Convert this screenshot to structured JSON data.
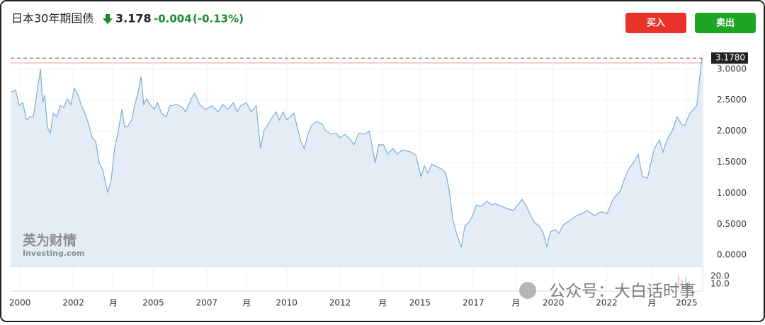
{
  "header": {
    "title": "日本30年期国债",
    "price": "3.178",
    "change": "-0.004",
    "change_pct": "(-0.13%)"
  },
  "buttons": {
    "buy": "买入",
    "sell": "卖出"
  },
  "watermarks": {
    "brand": "英为财情",
    "brand_sub": "Investing.com",
    "overlay": "公众号：大白话时事"
  },
  "volume_axis": [
    "20.0",
    "10.0"
  ],
  "chart_data": {
    "type": "area",
    "series": [
      {
        "color": "#7aaed6",
        "x": [
          1999.66,
          1999.84,
          1999.97,
          2000.11,
          2000.24,
          2000.37,
          2000.5,
          2000.64,
          2000.77,
          2000.85,
          2000.93,
          2001.03,
          2001.14,
          2001.25,
          2001.38,
          2001.51,
          2001.64,
          2001.78,
          2001.91,
          2002.04,
          2002.18,
          2002.31,
          2002.44,
          2002.57,
          2002.71,
          2002.84,
          2002.97,
          2003.1,
          2003.29,
          2003.42,
          2003.55,
          2003.69,
          2003.82,
          2003.93,
          2004.06,
          2004.19,
          2004.3,
          2004.43,
          2004.54,
          2004.64,
          2004.75,
          2004.88,
          2005.04,
          2005.15,
          2005.31,
          2005.49,
          2005.62,
          2005.89,
          2006.1,
          2006.21,
          2006.42,
          2006.55,
          2006.74,
          2006.95,
          2007.21,
          2007.43,
          2007.61,
          2007.8,
          2008.01,
          2008.14,
          2008.28,
          2008.49,
          2008.67,
          2008.86,
          2009.02,
          2009.15,
          2009.28,
          2009.47,
          2009.6,
          2009.73,
          2009.87,
          2010.0,
          2010.13,
          2010.27,
          2010.4,
          2010.53,
          2010.66,
          2010.8,
          2010.93,
          2011.11,
          2011.33,
          2011.46,
          2011.67,
          2011.86,
          2011.99,
          2012.18,
          2012.39,
          2012.52,
          2012.71,
          2012.92,
          2013.1,
          2013.32,
          2013.45,
          2013.63,
          2013.79,
          2013.98,
          2014.16,
          2014.32,
          2014.51,
          2014.69,
          2014.85,
          2015.04,
          2015.17,
          2015.3,
          2015.44,
          2015.62,
          2015.84,
          2015.97,
          2016.1,
          2016.23,
          2016.37,
          2016.55,
          2016.68,
          2016.82,
          2016.98,
          2017.11,
          2017.29,
          2017.51,
          2017.69,
          2017.82,
          2018.09,
          2018.3,
          2018.49,
          2018.67,
          2018.83,
          2018.99,
          2019.15,
          2019.31,
          2019.47,
          2019.63,
          2019.76,
          2019.89,
          2020.08,
          2020.21,
          2020.34,
          2020.48,
          2020.69,
          2020.88,
          2021.06,
          2021.27,
          2021.54,
          2021.8,
          2022.02,
          2022.2,
          2022.33,
          2022.52,
          2022.65,
          2022.81,
          2023.0,
          2023.18,
          2023.34,
          2023.53,
          2023.66,
          2023.79,
          2023.98,
          2024.11,
          2024.24,
          2024.46,
          2024.64,
          2024.8,
          2024.93,
          2025.12,
          2025.38,
          2025.46,
          2025.57
        ],
        "values": [
          2.63,
          2.66,
          2.41,
          2.46,
          2.18,
          2.23,
          2.23,
          2.63,
          3.0,
          2.46,
          2.58,
          2.06,
          1.97,
          2.29,
          2.23,
          2.41,
          2.38,
          2.52,
          2.43,
          2.69,
          2.58,
          2.41,
          2.29,
          2.12,
          1.89,
          1.84,
          1.49,
          1.38,
          1.01,
          1.21,
          1.72,
          2.01,
          2.35,
          2.06,
          2.09,
          2.18,
          2.41,
          2.63,
          2.88,
          2.43,
          2.52,
          2.43,
          2.35,
          2.46,
          2.29,
          2.23,
          2.41,
          2.43,
          2.38,
          2.31,
          2.52,
          2.61,
          2.43,
          2.35,
          2.41,
          2.31,
          2.43,
          2.35,
          2.46,
          2.31,
          2.41,
          2.46,
          2.31,
          2.41,
          1.72,
          2.01,
          2.09,
          2.23,
          2.31,
          2.18,
          2.31,
          2.18,
          2.23,
          2.29,
          2.06,
          1.84,
          1.72,
          1.95,
          2.09,
          2.15,
          2.12,
          2.01,
          1.95,
          1.97,
          1.89,
          1.95,
          1.87,
          1.78,
          1.97,
          1.95,
          2.0,
          1.49,
          1.78,
          1.78,
          1.63,
          1.72,
          1.63,
          1.7,
          1.68,
          1.66,
          1.61,
          1.27,
          1.44,
          1.32,
          1.47,
          1.43,
          1.38,
          1.32,
          1.04,
          0.58,
          0.35,
          0.13,
          0.47,
          0.52,
          0.64,
          0.81,
          0.79,
          0.87,
          0.81,
          0.83,
          0.78,
          0.75,
          0.72,
          0.81,
          0.9,
          0.79,
          0.64,
          0.52,
          0.47,
          0.35,
          0.13,
          0.38,
          0.41,
          0.35,
          0.47,
          0.52,
          0.58,
          0.64,
          0.67,
          0.72,
          0.64,
          0.7,
          0.67,
          0.87,
          0.95,
          1.04,
          1.21,
          1.38,
          1.49,
          1.63,
          1.27,
          1.24,
          1.49,
          1.72,
          1.86,
          1.66,
          1.84,
          2.01,
          2.23,
          2.12,
          2.09,
          2.29,
          2.41,
          2.75,
          3.178
        ]
      }
    ],
    "xlim": [
      1999.65,
      2025.6
    ],
    "ylim": [
      -0.18,
      3.26
    ],
    "xticks": [
      2000,
      2002,
      {
        "value": 2003.5,
        "label": "月"
      },
      2005,
      2007,
      {
        "value": 2008.5,
        "label": "月"
      },
      2010,
      2012,
      {
        "value": 2013.6,
        "label": "月"
      },
      2015,
      2017,
      {
        "value": 2018.6,
        "label": "月"
      },
      2020,
      2022,
      {
        "value": 2023.7,
        "label": "月"
      },
      2025
    ],
    "yticks": [
      {
        "value": 0,
        "label": "0.0000"
      },
      {
        "value": 0.5,
        "label": "0.5000"
      },
      {
        "value": 1,
        "label": "1.0000"
      },
      {
        "value": 1.5,
        "label": "1.5000"
      },
      {
        "value": 2,
        "label": "2.0000"
      },
      {
        "value": 2.5,
        "label": "2.5000"
      },
      {
        "value": 3,
        "label": "3.0000"
      }
    ],
    "price_line": {
      "value": 3.178,
      "label": "3.1780"
    },
    "grid": true
  }
}
